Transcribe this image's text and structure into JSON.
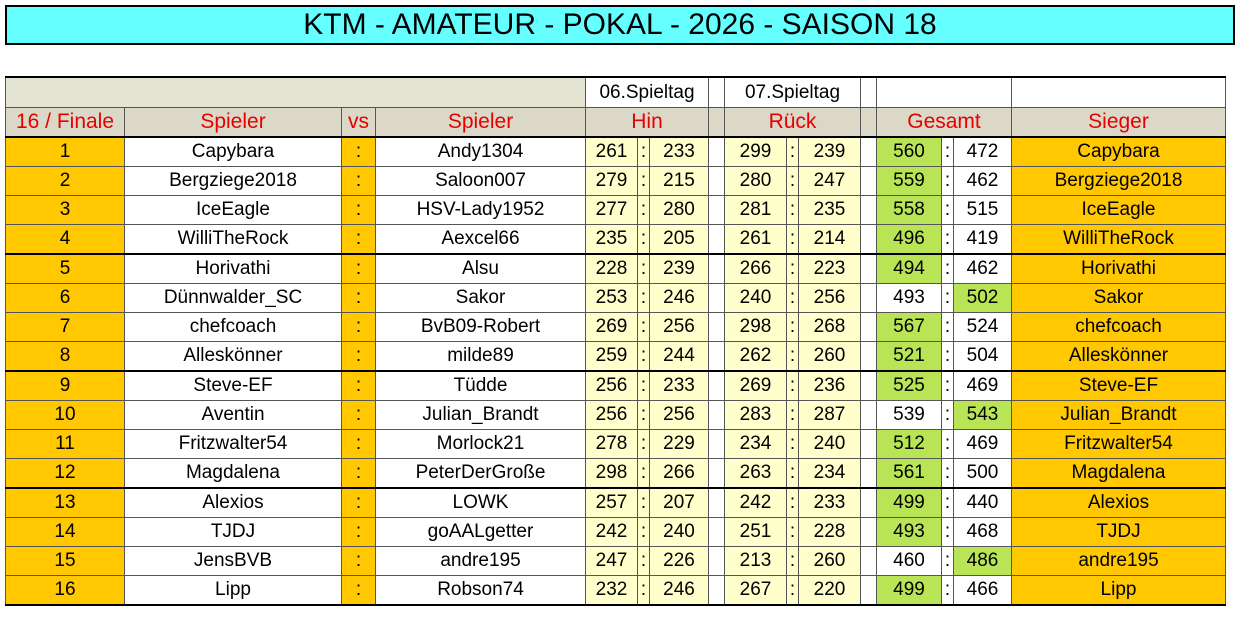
{
  "title": "KTM - AMATEUR - POKAL - 2026 - SAISON 18",
  "header": {
    "day1": "06.Spieltag",
    "day2": "07.Spieltag",
    "round": "16 / Finale",
    "player1": "Spieler",
    "vs": "vs",
    "player2": "Spieler",
    "hin": "Hin",
    "rueck": "Rück",
    "gesamt": "Gesamt",
    "sieger": "Sieger"
  },
  "colon": ":",
  "colors": {
    "title_bg": "#66ffff",
    "yellow": "#ffc800",
    "light": "#ffffcc",
    "green": "#b8e456",
    "header_text": "#e60000"
  },
  "matches": [
    {
      "nr": "1",
      "p1": "Capybara",
      "p2": "Andy1304",
      "h1": "261",
      "h2": "233",
      "r1": "299",
      "r2": "239",
      "g1": "560",
      "g2": "472",
      "winner": "Capybara",
      "win": 1
    },
    {
      "nr": "2",
      "p1": "Bergziege2018",
      "p2": "Saloon007",
      "h1": "279",
      "h2": "215",
      "r1": "280",
      "r2": "247",
      "g1": "559",
      "g2": "462",
      "winner": "Bergziege2018",
      "win": 1
    },
    {
      "nr": "3",
      "p1": "IceEagle",
      "p2": "HSV-Lady1952",
      "h1": "277",
      "h2": "280",
      "r1": "281",
      "r2": "235",
      "g1": "558",
      "g2": "515",
      "winner": "IceEagle",
      "win": 1
    },
    {
      "nr": "4",
      "p1": "WilliTheRock",
      "p2": "Aexcel66",
      "h1": "235",
      "h2": "205",
      "r1": "261",
      "r2": "214",
      "g1": "496",
      "g2": "419",
      "winner": "WilliTheRock",
      "win": 1
    },
    {
      "nr": "5",
      "p1": "Horivathi",
      "p2": "Alsu",
      "h1": "228",
      "h2": "239",
      "r1": "266",
      "r2": "223",
      "g1": "494",
      "g2": "462",
      "winner": "Horivathi",
      "win": 1
    },
    {
      "nr": "6",
      "p1": "Dünnwalder_SC",
      "p2": "Sakor",
      "h1": "253",
      "h2": "246",
      "r1": "240",
      "r2": "256",
      "g1": "493",
      "g2": "502",
      "winner": "Sakor",
      "win": 2
    },
    {
      "nr": "7",
      "p1": "chefcoach",
      "p2": "BvB09-Robert",
      "h1": "269",
      "h2": "256",
      "r1": "298",
      "r2": "268",
      "g1": "567",
      "g2": "524",
      "winner": "chefcoach",
      "win": 1
    },
    {
      "nr": "8",
      "p1": "Alleskönner",
      "p2": "milde89",
      "h1": "259",
      "h2": "244",
      "r1": "262",
      "r2": "260",
      "g1": "521",
      "g2": "504",
      "winner": "Alleskönner",
      "win": 1
    },
    {
      "nr": "9",
      "p1": "Steve-EF",
      "p2": "Tüdde",
      "h1": "256",
      "h2": "233",
      "r1": "269",
      "r2": "236",
      "g1": "525",
      "g2": "469",
      "winner": "Steve-EF",
      "win": 1
    },
    {
      "nr": "10",
      "p1": "Aventin",
      "p2": "Julian_Brandt",
      "h1": "256",
      "h2": "256",
      "r1": "283",
      "r2": "287",
      "g1": "539",
      "g2": "543",
      "winner": "Julian_Brandt",
      "win": 2
    },
    {
      "nr": "11",
      "p1": "Fritzwalter54",
      "p2": "Morlock21",
      "h1": "278",
      "h2": "229",
      "r1": "234",
      "r2": "240",
      "g1": "512",
      "g2": "469",
      "winner": "Fritzwalter54",
      "win": 1
    },
    {
      "nr": "12",
      "p1": "Magdalena",
      "p2": "PeterDerGroße",
      "h1": "298",
      "h2": "266",
      "r1": "263",
      "r2": "234",
      "g1": "561",
      "g2": "500",
      "winner": "Magdalena",
      "win": 1
    },
    {
      "nr": "13",
      "p1": "Alexios",
      "p2": "LOWK",
      "h1": "257",
      "h2": "207",
      "r1": "242",
      "r2": "233",
      "g1": "499",
      "g2": "440",
      "winner": "Alexios",
      "win": 1
    },
    {
      "nr": "14",
      "p1": "TJDJ",
      "p2": "goAALgetter",
      "h1": "242",
      "h2": "240",
      "r1": "251",
      "r2": "228",
      "g1": "493",
      "g2": "468",
      "winner": "TJDJ",
      "win": 1
    },
    {
      "nr": "15",
      "p1": "JensBVB",
      "p2": "andre195",
      "h1": "247",
      "h2": "226",
      "r1": "213",
      "r2": "260",
      "g1": "460",
      "g2": "486",
      "winner": "andre195",
      "win": 2
    },
    {
      "nr": "16",
      "p1": "Lipp",
      "p2": "Robson74",
      "h1": "232",
      "h2": "246",
      "r1": "267",
      "r2": "220",
      "g1": "499",
      "g2": "466",
      "winner": "Lipp",
      "win": 1
    }
  ]
}
